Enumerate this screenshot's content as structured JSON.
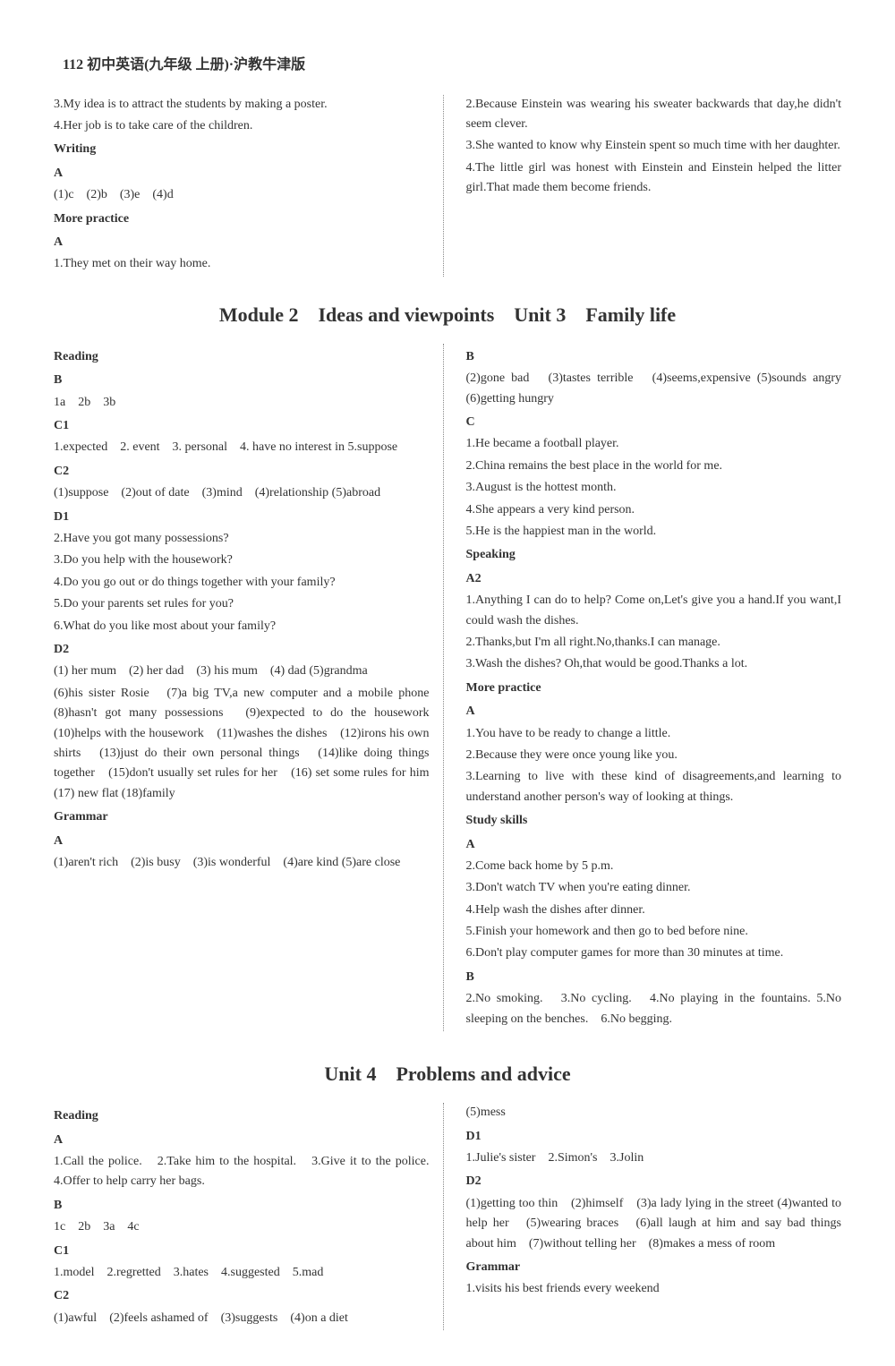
{
  "page_header": "112 初中英语(九年级 上册)·沪教牛津版",
  "top_section": {
    "left": {
      "lines": [
        "3.My idea is to attract the students by making a poster.",
        "4.Her job is to take care of the children."
      ],
      "writing_label": "Writing",
      "writing_a": "A",
      "writing_a_content": "(1)c　(2)b　(3)e　(4)d",
      "more_practice": "More practice",
      "more_a": "A",
      "more_a_content": "1.They met on their way home."
    },
    "right": {
      "lines": [
        "2.Because Einstein was wearing his sweater backwards that day,he didn't seem clever.",
        "3.She wanted to know why Einstein spent so much time with her daughter.",
        "4.The little girl was honest with Einstein and Einstein helped the litter girl.That made them become friends."
      ]
    }
  },
  "module2_title": "Module 2　Ideas and viewpoints　Unit 3　Family life",
  "module2": {
    "left": {
      "reading": "Reading",
      "b_label": "B",
      "b_content": "1a　2b　3b",
      "c1_label": "C1",
      "c1_content": "1.expected　2. event　3. personal　4. have no interest in 5.suppose",
      "c2_label": "C2",
      "c2_content": "(1)suppose　(2)out of date　(3)mind　(4)relationship (5)abroad",
      "d1_label": "D1",
      "d1_lines": [
        "2.Have you got many possessions?",
        "3.Do you help with the housework?",
        "4.Do you go out or do things together with your family?",
        "5.Do your parents set rules for you?",
        "6.What do you like most about your family?"
      ],
      "d2_label": "D2",
      "d2_content": "(1) her mum　(2) her dad　(3) his mum　(4) dad (5)grandma",
      "d2_content2": "(6)his sister Rosie　(7)a big TV,a new computer and a mobile phone　(8)hasn't got many possessions　(9)expected to do the housework　(10)helps with the housework　(11)washes the dishes　(12)irons his own shirts　(13)just do their own personal things　(14)like doing things together　(15)don't usually set rules for her　(16) set some rules for him　(17) new flat (18)family",
      "grammar_label": "Grammar",
      "grammar_a": "A",
      "grammar_a_content": "(1)aren't rich　(2)is busy　(3)is wonderful　(4)are kind (5)are close"
    },
    "right": {
      "b_label": "B",
      "b_content": "(2)gone bad　(3)tastes terrible　(4)seems,expensive (5)sounds angry　(6)getting hungry",
      "c_label": "C",
      "c_lines": [
        "1.He became a football player.",
        "2.China remains the best place in the world for me.",
        "3.August is the hottest month.",
        "4.She appears a very kind person.",
        "5.He is the happiest man in the world."
      ],
      "speaking_label": "Speaking",
      "a2_label": "A2",
      "a2_lines": [
        "1.Anything I can do to help? Come on,Let's give you a hand.If you want,I could wash the dishes.",
        "2.Thanks,but I'm all right.No,thanks.I can manage.",
        "3.Wash the dishes? Oh,that would be good.Thanks a lot."
      ],
      "more_practice_label": "More practice",
      "more_a_label": "A",
      "more_a_lines": [
        "1.You have to be ready to change a little.",
        "2.Because they were once young like you.",
        "3.Learning to live with these kind of disagreements,and learning to understand another person's way of looking at things."
      ],
      "study_skills_label": "Study skills",
      "study_a_label": "A",
      "study_a_lines": [
        "2.Come back home by 5 p.m.",
        "3.Don't watch TV when you're eating dinner.",
        "4.Help wash the dishes after dinner.",
        "5.Finish your homework and then go to bed before nine.",
        "6.Don't play computer games for more than 30 minutes at time."
      ],
      "study_b_label": "B",
      "study_b_content": "2.No smoking.　3.No cycling.　4.No playing in the fountains. 5.No sleeping on the benches.　6.No begging."
    }
  },
  "unit4_title": "Unit 4　Problems and advice",
  "unit4": {
    "left": {
      "reading": "Reading",
      "a_label": "A",
      "a_content": "1.Call the police.　2.Take him to the hospital.　3.Give it to the police.　4.Offer to help carry her bags.",
      "b_label": "B",
      "b_content": "1c　2b　3a　4c",
      "c1_label": "C1",
      "c1_content": "1.model　2.regretted　3.hates　4.suggested　5.mad",
      "c2_label": "C2",
      "c2_content": "(1)awful　(2)feels ashamed of　(3)suggests　(4)on a diet"
    },
    "right": {
      "mess": "(5)mess",
      "d1_label": "D1",
      "d1_content": "1.Julie's sister　2.Simon's　3.Jolin",
      "d2_label": "D2",
      "d2_content": "(1)getting too thin　(2)himself　(3)a lady lying in the street (4)wanted to help her　(5)wearing braces　(6)all laugh at him and say bad things about him　(7)without telling her　(8)makes a mess of room",
      "grammar_label": "Grammar",
      "grammar_content": "1.visits his best friends every weekend"
    }
  }
}
